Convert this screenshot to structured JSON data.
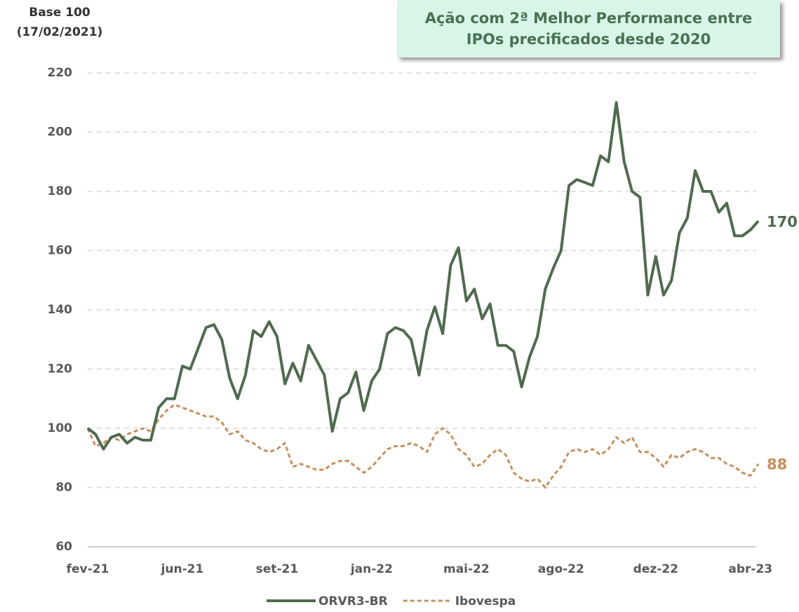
{
  "chart_data": {
    "type": "line",
    "title": "Ação com 2ª Melhor Performance entre IPOs precificados desde 2020",
    "y_label": "Base 100 (17/02/2021)",
    "x": [
      0,
      1,
      2,
      3,
      4,
      5,
      6,
      7,
      8,
      9,
      10,
      11,
      12,
      13,
      14,
      15,
      16,
      17,
      18,
      19,
      20,
      21,
      22,
      23,
      24,
      25,
      26,
      27,
      28,
      29,
      30,
      31,
      32,
      33,
      34,
      35,
      36,
      37,
      38,
      39,
      40,
      41,
      42,
      43,
      44,
      45,
      46,
      47,
      48,
      49,
      50,
      51,
      52,
      53,
      54,
      55,
      56,
      57,
      58,
      59,
      60,
      61,
      62,
      63,
      64,
      65,
      66,
      67,
      68,
      69,
      70,
      71,
      72,
      73,
      74,
      75,
      76,
      77,
      78,
      79,
      80,
      81,
      82,
      83,
      84,
      85
    ],
    "xlim": [
      0,
      85
    ],
    "xticks": [
      {
        "value": 0,
        "label": "fev-21"
      },
      {
        "value": 12,
        "label": "jun-21"
      },
      {
        "value": 24,
        "label": "set-21"
      },
      {
        "value": 36,
        "label": "jan-22"
      },
      {
        "value": 48,
        "label": "mai-22"
      },
      {
        "value": 60,
        "label": "ago-22"
      },
      {
        "value": 72,
        "label": "dez-22"
      },
      {
        "value": 84,
        "label": "abr-23"
      }
    ],
    "ylim": [
      60,
      220
    ],
    "yticks": [
      60,
      80,
      100,
      120,
      140,
      160,
      180,
      200,
      220
    ],
    "grid": true,
    "series": [
      {
        "name": "ORVR3-BR",
        "color": "#4f6b4d",
        "dashed": false,
        "values": [
          100,
          98,
          93,
          97,
          98,
          95,
          97,
          96,
          96,
          107,
          110,
          110,
          121,
          120,
          127,
          134,
          135,
          130,
          117,
          110,
          118,
          133,
          131,
          136,
          131,
          115,
          122,
          116,
          128,
          123,
          118,
          99,
          110,
          112,
          119,
          106,
          116,
          120,
          132,
          134,
          133,
          130,
          118,
          133,
          141,
          132,
          155,
          161,
          143,
          147,
          137,
          142,
          128,
          128,
          126,
          114,
          124,
          131,
          147,
          154,
          160,
          182,
          184,
          183,
          182,
          192,
          190,
          210,
          190,
          180,
          178,
          145,
          158,
          145,
          150,
          166,
          171,
          187,
          180,
          180,
          173,
          176,
          165,
          165,
          167,
          170
        ]
      },
      {
        "name": "Ibovespa",
        "color": "#c8905e",
        "dashed": true,
        "values": [
          100,
          94,
          95,
          97,
          96,
          98,
          99,
          100,
          99,
          103,
          106,
          108,
          107,
          106,
          105,
          104,
          104,
          102,
          98,
          99,
          96,
          95,
          93,
          92,
          93,
          95,
          87,
          88,
          87,
          86,
          86,
          88,
          89,
          89,
          87,
          85,
          87,
          90,
          93,
          94,
          94,
          95,
          94,
          92,
          98,
          100,
          98,
          93,
          91,
          87,
          88,
          91,
          93,
          91,
          85,
          83,
          82,
          83,
          80,
          84,
          87,
          92,
          93,
          92,
          93,
          91,
          93,
          97,
          95,
          97,
          92,
          92,
          90,
          87,
          91,
          90,
          92,
          93,
          92,
          90,
          90,
          88,
          87,
          85,
          84,
          88
        ]
      }
    ]
  }
}
